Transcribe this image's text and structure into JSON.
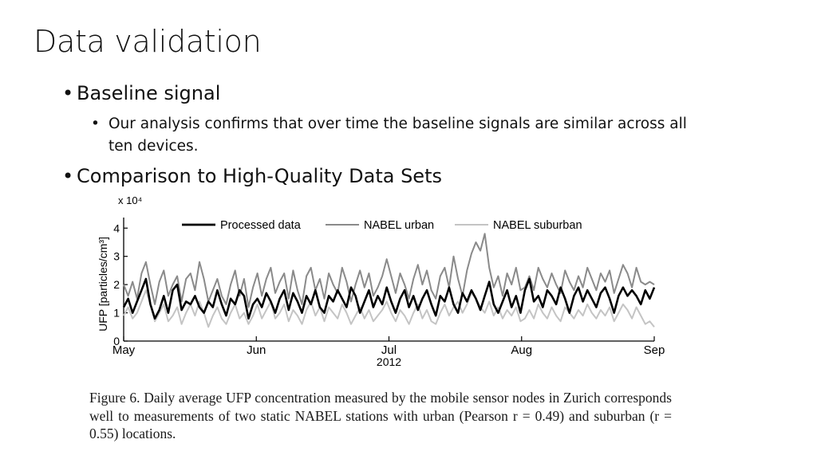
{
  "slide": {
    "title": "Data validation",
    "bullets": [
      {
        "text": "Baseline signal"
      },
      {
        "text": "Our analysis confirms that over time the baseline signals are similar across all",
        "cont": "ten devices."
      },
      {
        "text": "Comparison to High-Quality Data Sets"
      }
    ],
    "bullet_char": "•"
  },
  "chart_data": {
    "type": "line",
    "ylabel": "UFP [particles/cm³]",
    "y_exponent_label": "x 10⁴",
    "x_ticks": [
      "May",
      "Jun",
      "Jul",
      "Aug",
      "Sep"
    ],
    "x_sublabel": "2012",
    "ylim": [
      0,
      4.6
    ],
    "yticks": [
      0,
      1,
      2,
      3,
      4
    ],
    "legend_position": "top",
    "series": [
      {
        "name": "Processed data",
        "color": "#000000",
        "values": [
          1.2,
          1.5,
          1.0,
          1.4,
          1.8,
          2.2,
          1.3,
          0.8,
          1.1,
          1.6,
          1.0,
          1.8,
          2.0,
          1.1,
          1.4,
          1.3,
          1.6,
          1.2,
          1.0,
          1.4,
          1.2,
          1.8,
          1.3,
          0.9,
          1.5,
          1.3,
          1.8,
          1.6,
          0.8,
          1.3,
          1.5,
          1.2,
          1.7,
          1.4,
          1.0,
          1.5,
          1.8,
          1.1,
          1.7,
          1.4,
          1.0,
          1.6,
          1.3,
          1.8,
          1.2,
          1.0,
          1.6,
          1.4,
          1.8,
          1.5,
          1.2,
          1.9,
          1.6,
          1.0,
          1.4,
          1.8,
          1.2,
          1.6,
          1.3,
          1.9,
          1.4,
          1.0,
          1.5,
          1.8,
          1.2,
          1.6,
          1.1,
          1.5,
          1.8,
          1.3,
          0.9,
          1.6,
          1.4,
          1.9,
          1.3,
          1.0,
          1.7,
          1.4,
          1.8,
          1.5,
          1.1,
          1.6,
          2.1,
          1.3,
          1.0,
          1.4,
          1.8,
          1.2,
          1.6,
          1.0,
          1.8,
          2.2,
          1.4,
          1.6,
          1.2,
          1.8,
          1.6,
          1.3,
          1.9,
          1.5,
          1.0,
          1.6,
          1.9,
          1.4,
          1.8,
          1.5,
          1.2,
          1.7,
          1.9,
          1.5,
          1.0,
          1.6,
          1.9,
          1.6,
          1.8,
          1.6,
          1.3,
          1.8,
          1.5,
          1.9
        ]
      },
      {
        "name": "NABEL urban",
        "color": "#8a8a8a",
        "values": [
          2.0,
          1.6,
          2.1,
          1.5,
          2.4,
          2.8,
          2.0,
          1.3,
          2.1,
          2.5,
          1.6,
          2.0,
          2.3,
          1.4,
          2.2,
          2.4,
          1.8,
          2.8,
          2.2,
          1.4,
          1.8,
          2.2,
          1.6,
          1.3,
          2.0,
          2.5,
          1.6,
          2.2,
          1.2,
          1.9,
          2.4,
          1.6,
          2.2,
          2.6,
          1.7,
          2.1,
          2.4,
          1.5,
          2.5,
          1.8,
          1.3,
          2.3,
          2.6,
          1.8,
          2.2,
          1.5,
          2.4,
          2.0,
          1.7,
          2.6,
          2.1,
          1.4,
          2.0,
          2.5,
          1.9,
          2.4,
          1.6,
          1.9,
          2.3,
          2.9,
          2.3,
          1.7,
          2.4,
          2.0,
          1.5,
          2.2,
          2.7,
          2.0,
          2.5,
          1.8,
          1.5,
          2.3,
          2.6,
          1.9,
          3.0,
          2.2,
          1.6,
          2.5,
          3.1,
          3.5,
          3.2,
          3.8,
          2.6,
          1.9,
          2.3,
          1.6,
          2.4,
          2.0,
          2.6,
          1.8,
          1.9,
          2.3,
          1.8,
          2.6,
          2.2,
          1.9,
          2.4,
          2.0,
          1.7,
          2.5,
          2.1,
          1.8,
          2.3,
          1.9,
          2.6,
          2.2,
          1.8,
          2.4,
          2.1,
          2.5,
          1.7,
          2.2,
          2.7,
          2.4,
          1.9,
          2.6,
          2.1,
          2.0,
          2.1,
          2.0
        ]
      },
      {
        "name": "NABEL suburban",
        "color": "#c4c4c4",
        "values": [
          0.9,
          1.2,
          0.8,
          1.0,
          1.4,
          1.8,
          1.3,
          0.7,
          1.0,
          1.3,
          0.7,
          0.9,
          1.2,
          0.6,
          1.0,
          1.3,
          0.9,
          1.4,
          1.0,
          0.5,
          0.9,
          1.2,
          0.8,
          0.6,
          1.0,
          1.3,
          0.8,
          1.0,
          0.6,
          0.9,
          1.3,
          0.8,
          1.1,
          1.4,
          0.8,
          1.0,
          1.3,
          0.7,
          1.1,
          0.9,
          0.6,
          1.1,
          1.4,
          0.9,
          1.2,
          0.7,
          1.2,
          1.0,
          0.8,
          1.3,
          1.0,
          0.6,
          0.9,
          1.2,
          0.8,
          1.1,
          0.7,
          0.9,
          1.1,
          1.4,
          1.0,
          0.7,
          1.1,
          0.9,
          0.6,
          1.0,
          1.3,
          0.8,
          1.1,
          0.7,
          0.6,
          1.0,
          1.3,
          0.9,
          1.2,
          1.4,
          1.0,
          1.3,
          1.7,
          1.5,
          1.2,
          1.0,
          1.4,
          0.9,
          1.2,
          0.8,
          1.1,
          0.9,
          1.2,
          0.7,
          0.8,
          1.1,
          0.8,
          1.3,
          1.0,
          0.8,
          1.2,
          0.9,
          0.7,
          1.2,
          1.0,
          0.8,
          1.1,
          0.9,
          1.3,
          1.0,
          0.8,
          1.1,
          0.9,
          1.2,
          0.7,
          1.0,
          1.3,
          1.1,
          0.8,
          1.2,
          0.9,
          0.6,
          0.7,
          0.5
        ]
      }
    ]
  },
  "caption": {
    "text": "Figure 6.   Daily average UFP concentration measured by the mobile sensor nodes in Zurich corresponds well to measurements of two static NABEL stations with urban (Pearson r = 0.49) and suburban (r = 0.55) locations."
  }
}
